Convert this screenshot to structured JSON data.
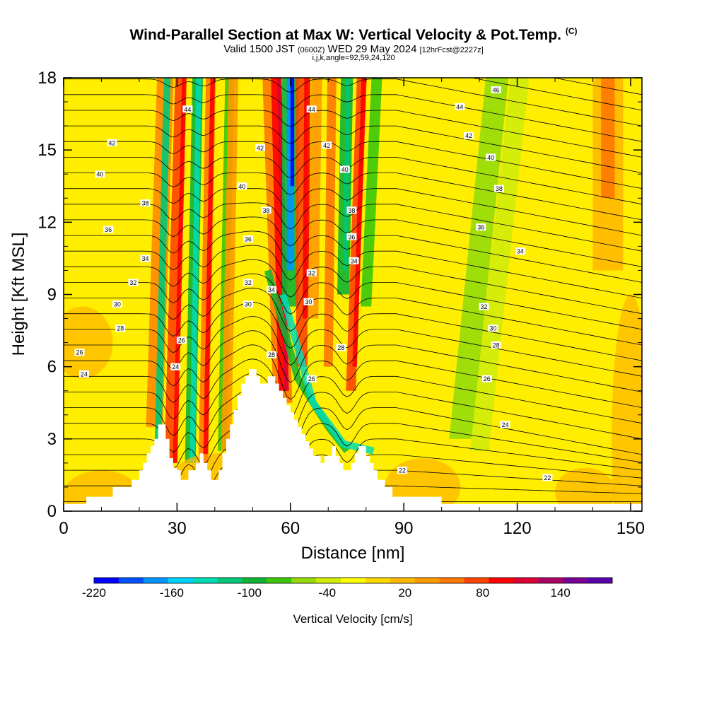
{
  "header": {
    "title": "Wind-Parallel Section at Max W: Vertical Velocity & Pot.Temp.",
    "copyright": "(C)",
    "valid_prefix": "Valid 1500 JST",
    "valid_utc": "(0600Z)",
    "valid_date": "WED 29 May 2024",
    "forecast": "[12hrFcst@2227z]",
    "indices": "i,j,k,angle=92,59,24,120"
  },
  "chart_data": {
    "type": "heatmap",
    "xlabel": "Distance [nm]",
    "ylabel": "Height [Kft MSL]",
    "xlim": [
      0,
      153
    ],
    "ylim": [
      0,
      18
    ],
    "x_ticks": [
      "0",
      "30",
      "60",
      "90",
      "120",
      "150"
    ],
    "y_ticks": [
      "0",
      "3",
      "6",
      "9",
      "12",
      "15",
      "18"
    ],
    "colorbar": {
      "label": "Vertical Velocity [cm/s]",
      "range": [
        -220,
        180
      ],
      "tick_labels": [
        "-220",
        "-160",
        "-100",
        "-40",
        "20",
        "80",
        "140"
      ],
      "colors": [
        "#0000ff",
        "#0050ff",
        "#0096ff",
        "#00d2ff",
        "#00dcb4",
        "#00c878",
        "#10b432",
        "#3cc80a",
        "#96dc0a",
        "#d2ec0a",
        "#ffff00",
        "#ffd800",
        "#ffb800",
        "#ff9a00",
        "#ff7800",
        "#ff4400",
        "#ff0000",
        "#dc0032",
        "#aa0064",
        "#780096",
        "#5a00aa"
      ]
    },
    "terrain": [
      [
        0,
        0.3
      ],
      [
        6,
        0.3
      ],
      [
        6,
        0.6
      ],
      [
        13,
        0.6
      ],
      [
        13,
        1.0
      ],
      [
        18,
        1.0
      ],
      [
        18,
        1.3
      ],
      [
        20,
        1.3
      ],
      [
        20,
        1.7
      ],
      [
        21,
        1.7
      ],
      [
        21,
        2.0
      ],
      [
        22,
        2.0
      ],
      [
        22,
        2.4
      ],
      [
        23,
        2.4
      ],
      [
        23,
        2.7
      ],
      [
        24,
        2.7
      ],
      [
        24,
        3.0
      ],
      [
        25,
        3.0
      ],
      [
        25,
        3.6
      ],
      [
        27,
        3.6
      ],
      [
        27,
        3.0
      ],
      [
        28,
        3.0
      ],
      [
        28,
        2.2
      ],
      [
        29,
        2.2
      ],
      [
        29,
        1.8
      ],
      [
        30,
        1.8
      ],
      [
        30,
        1.7
      ],
      [
        31,
        1.7
      ],
      [
        31,
        1.3
      ],
      [
        33,
        1.3
      ],
      [
        33,
        1.7
      ],
      [
        35,
        1.7
      ],
      [
        35,
        2.0
      ],
      [
        36,
        2.0
      ],
      [
        36,
        2.4
      ],
      [
        37,
        2.4
      ],
      [
        37,
        2.0
      ],
      [
        38,
        2.0
      ],
      [
        38,
        1.7
      ],
      [
        39,
        1.7
      ],
      [
        39,
        1.3
      ],
      [
        41,
        1.3
      ],
      [
        41,
        1.7
      ],
      [
        42,
        1.7
      ],
      [
        42,
        2.4
      ],
      [
        43,
        2.4
      ],
      [
        43,
        3.0
      ],
      [
        44,
        3.0
      ],
      [
        44,
        3.6
      ],
      [
        45,
        3.6
      ],
      [
        45,
        4.2
      ],
      [
        46,
        4.2
      ],
      [
        46,
        4.8
      ],
      [
        47,
        4.8
      ],
      [
        47,
        5.3
      ],
      [
        48,
        5.3
      ],
      [
        48,
        5.6
      ],
      [
        49,
        5.6
      ],
      [
        49,
        5.9
      ],
      [
        51,
        5.9
      ],
      [
        51,
        5.6
      ],
      [
        52,
        5.6
      ],
      [
        52,
        5.3
      ],
      [
        54,
        5.3
      ],
      [
        54,
        5.6
      ],
      [
        56,
        5.6
      ],
      [
        56,
        5.3
      ],
      [
        57,
        5.3
      ],
      [
        57,
        5.0
      ],
      [
        58,
        5.0
      ],
      [
        58,
        4.7
      ],
      [
        59,
        4.7
      ],
      [
        59,
        4.4
      ],
      [
        60,
        4.4
      ],
      [
        60,
        4.1
      ],
      [
        61,
        4.1
      ],
      [
        61,
        3.8
      ],
      [
        62,
        3.8
      ],
      [
        62,
        3.5
      ],
      [
        63,
        3.5
      ],
      [
        63,
        3.2
      ],
      [
        64,
        3.2
      ],
      [
        64,
        2.9
      ],
      [
        65,
        2.9
      ],
      [
        65,
        2.6
      ],
      [
        66,
        2.6
      ],
      [
        66,
        2.3
      ],
      [
        68,
        2.3
      ],
      [
        68,
        2.0
      ],
      [
        69,
        2.0
      ],
      [
        69,
        2.3
      ],
      [
        71,
        2.3
      ],
      [
        71,
        2.7
      ],
      [
        72,
        2.7
      ],
      [
        72,
        2.3
      ],
      [
        73,
        2.3
      ],
      [
        73,
        2.0
      ],
      [
        74,
        2.0
      ],
      [
        74,
        1.7
      ],
      [
        76,
        1.7
      ],
      [
        76,
        2.0
      ],
      [
        77,
        2.0
      ],
      [
        77,
        2.4
      ],
      [
        78,
        2.4
      ],
      [
        78,
        2.7
      ],
      [
        80,
        2.7
      ],
      [
        80,
        2.3
      ],
      [
        81,
        2.3
      ],
      [
        81,
        2.0
      ],
      [
        82,
        2.0
      ],
      [
        82,
        1.7
      ],
      [
        83,
        1.7
      ],
      [
        83,
        1.3
      ],
      [
        85,
        1.3
      ],
      [
        85,
        1.0
      ],
      [
        87,
        1.0
      ],
      [
        87,
        0.6
      ],
      [
        100,
        0.6
      ],
      [
        100,
        0.3
      ],
      [
        153,
        0.3
      ]
    ],
    "theta_labels": [
      {
        "v": "24",
        "x": 5.4,
        "y": 5.7
      },
      {
        "v": "26",
        "x": 4.2,
        "y": 6.6
      },
      {
        "v": "28",
        "x": 15.0,
        "y": 7.6
      },
      {
        "v": "30",
        "x": 14.2,
        "y": 8.6
      },
      {
        "v": "32",
        "x": 18.4,
        "y": 9.5
      },
      {
        "v": "34",
        "x": 21.6,
        "y": 10.5
      },
      {
        "v": "36",
        "x": 11.8,
        "y": 11.7
      },
      {
        "v": "38",
        "x": 21.6,
        "y": 12.8
      },
      {
        "v": "40",
        "x": 9.6,
        "y": 14.0
      },
      {
        "v": "42",
        "x": 12.8,
        "y": 15.3
      },
      {
        "v": "44",
        "x": 32.8,
        "y": 16.7
      },
      {
        "v": "24",
        "x": 29.6,
        "y": 6.0
      },
      {
        "v": "26",
        "x": 31.2,
        "y": 7.1
      },
      {
        "v": "28",
        "x": 55.0,
        "y": 6.5
      },
      {
        "v": "30",
        "x": 48.8,
        "y": 8.6
      },
      {
        "v": "32",
        "x": 48.8,
        "y": 9.5
      },
      {
        "v": "34",
        "x": 55.0,
        "y": 9.2
      },
      {
        "v": "36",
        "x": 48.8,
        "y": 11.3
      },
      {
        "v": "38",
        "x": 53.6,
        "y": 12.5
      },
      {
        "v": "40",
        "x": 47.2,
        "y": 13.5
      },
      {
        "v": "42",
        "x": 52.0,
        "y": 15.1
      },
      {
        "v": "44",
        "x": 65.6,
        "y": 16.7
      },
      {
        "v": "26",
        "x": 65.6,
        "y": 5.5
      },
      {
        "v": "28",
        "x": 73.4,
        "y": 6.8
      },
      {
        "v": "30",
        "x": 64.8,
        "y": 8.7
      },
      {
        "v": "32",
        "x": 65.6,
        "y": 9.9
      },
      {
        "v": "34",
        "x": 76.8,
        "y": 10.4
      },
      {
        "v": "36",
        "x": 76.2,
        "y": 11.4
      },
      {
        "v": "38",
        "x": 76.2,
        "y": 12.5
      },
      {
        "v": "40",
        "x": 74.4,
        "y": 14.2
      },
      {
        "v": "42",
        "x": 69.6,
        "y": 15.2
      },
      {
        "v": "44",
        "x": 104.8,
        "y": 16.8
      },
      {
        "v": "46",
        "x": 114.4,
        "y": 17.5
      },
      {
        "v": "42",
        "x": 107.2,
        "y": 15.6
      },
      {
        "v": "40",
        "x": 113.0,
        "y": 14.7
      },
      {
        "v": "38",
        "x": 115.2,
        "y": 13.4
      },
      {
        "v": "36",
        "x": 110.4,
        "y": 11.8
      },
      {
        "v": "34",
        "x": 120.8,
        "y": 10.8
      },
      {
        "v": "32",
        "x": 111.2,
        "y": 8.5
      },
      {
        "v": "30",
        "x": 113.6,
        "y": 7.6
      },
      {
        "v": "28",
        "x": 114.4,
        "y": 6.9
      },
      {
        "v": "26",
        "x": 112.0,
        "y": 5.5
      },
      {
        "v": "24",
        "x": 116.8,
        "y": 3.6
      },
      {
        "v": "22",
        "x": 128.0,
        "y": 1.4
      },
      {
        "v": "22",
        "x": 89.6,
        "y": 1.7
      }
    ]
  }
}
